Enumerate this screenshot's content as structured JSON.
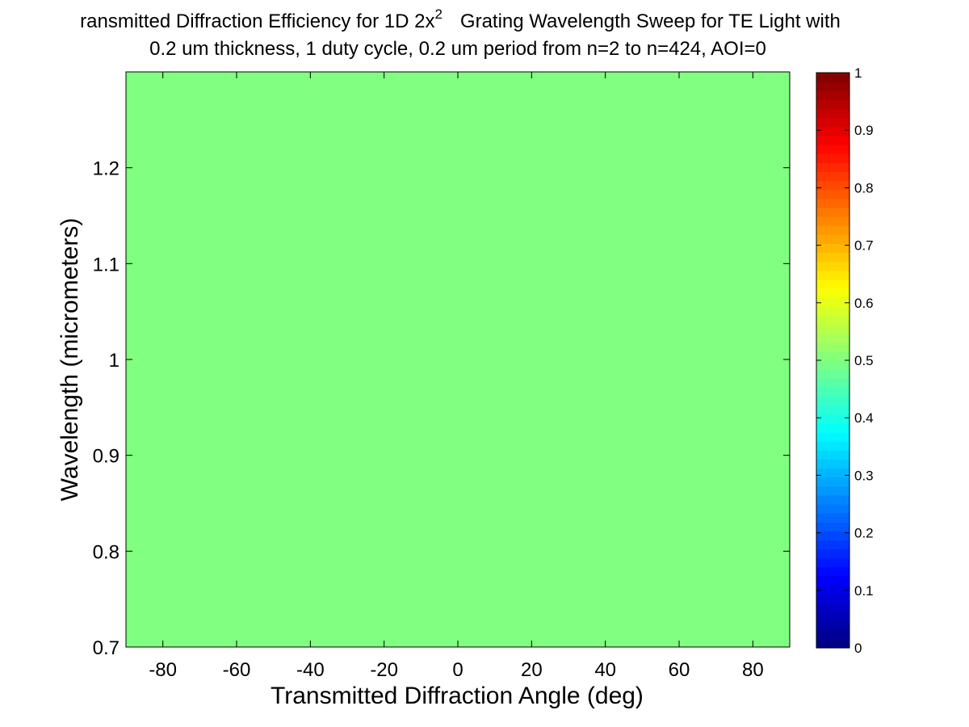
{
  "chart_data": {
    "type": "heatmap",
    "title_line1_prefix": "ransmitted Diffraction Efficiency for 1D 2x",
    "title_line1_superscript": "2",
    "title_line1_suffix": "Grating Wavelength Sweep for TE Light with",
    "title_line2": "0.2 um thickness, 1 duty cycle, 0.2 um period from n=2 to n=424, AOI=0",
    "xlabel": "Transmitted Diffraction Angle (deg)",
    "ylabel": "Wavelength (micrometers)",
    "xlim": [
      -90,
      90
    ],
    "ylim": [
      0.7,
      1.3
    ],
    "xticks": [
      -80,
      -60,
      -40,
      -20,
      0,
      20,
      40,
      60,
      80
    ],
    "xtick_labels": [
      "-80",
      "-60",
      "-40",
      "-20",
      "0",
      "20",
      "40",
      "60",
      "80"
    ],
    "yticks": [
      0.7,
      0.8,
      0.9,
      1.0,
      1.1,
      1.2
    ],
    "ytick_labels": [
      "0.7",
      "0.8",
      "0.9",
      "1",
      "1.1",
      "1.2"
    ],
    "value": 0.5,
    "colorbar": {
      "min": 0,
      "max": 1,
      "ticks": [
        0,
        0.1,
        0.2,
        0.3,
        0.4,
        0.5,
        0.6,
        0.7,
        0.8,
        0.9,
        1
      ],
      "tick_labels": [
        "0",
        "0.1",
        "0.2",
        "0.3",
        "0.4",
        "0.5",
        "0.6",
        "0.7",
        "0.8",
        "0.9",
        "1"
      ],
      "colormap": "jet"
    },
    "grid": false
  }
}
